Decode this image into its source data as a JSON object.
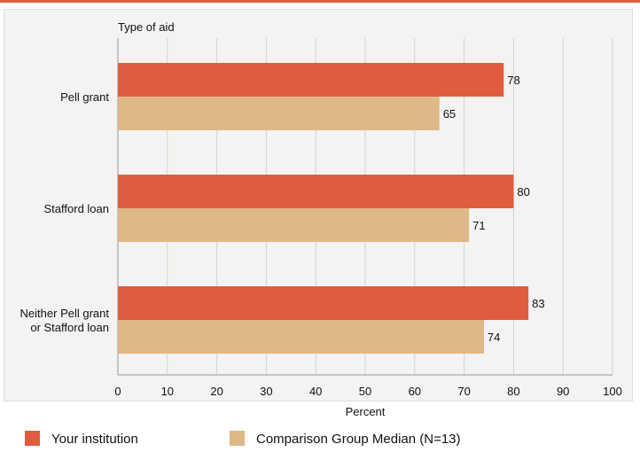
{
  "chart_data": {
    "type": "bar",
    "orientation": "horizontal",
    "y_header": "Type of aid",
    "categories": [
      [
        "Pell grant"
      ],
      [
        "Stafford loan"
      ],
      [
        "Neither Pell grant",
        "or Stafford loan"
      ]
    ],
    "series": [
      {
        "name": "Your institution",
        "color": "#e05c3e",
        "values": [
          78,
          80,
          83
        ]
      },
      {
        "name": "Comparison Group Median (N=13)",
        "color": "#deb887",
        "values": [
          65,
          71,
          74
        ]
      }
    ],
    "xlabel": "Percent",
    "xlim": [
      0,
      100
    ],
    "xticks": [
      0,
      10,
      20,
      30,
      40,
      50,
      60,
      70,
      80,
      90,
      100
    ],
    "grid": "vertical",
    "legend": "bottom-left"
  }
}
